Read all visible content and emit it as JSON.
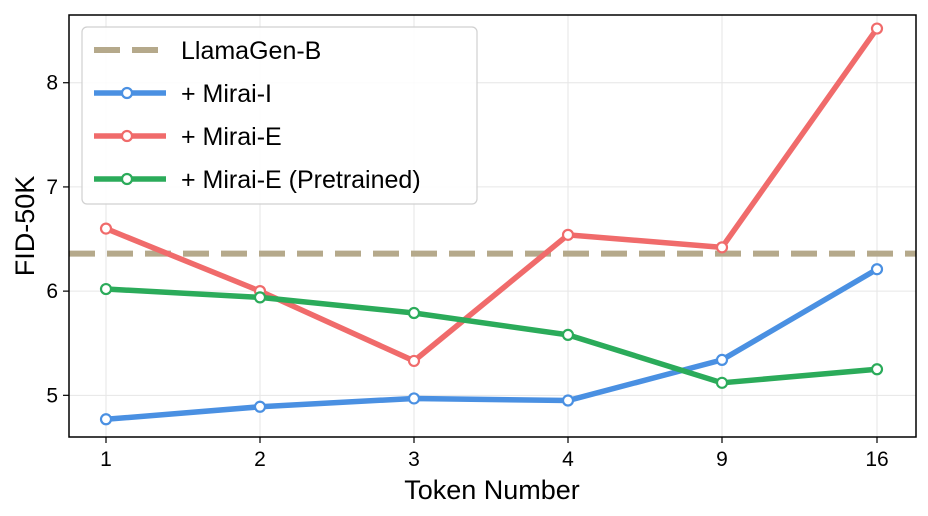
{
  "chart_data": {
    "type": "line",
    "title": "",
    "xlabel": "Token Number",
    "ylabel": "FID-50K",
    "categories": [
      "1",
      "2",
      "3",
      "4",
      "9",
      "16"
    ],
    "yticks": [
      "5",
      "6",
      "7",
      "8"
    ],
    "ylim": [
      4.6,
      8.65
    ],
    "grid": true,
    "legend_position": "top-left",
    "baseline": {
      "name": "LlamaGen-B",
      "value": 6.36,
      "color": "#b5a98b",
      "style": "dashed"
    },
    "series": [
      {
        "name": "+ Mirai-I",
        "color": "#4a90e2",
        "values": [
          4.77,
          4.89,
          4.97,
          4.95,
          5.34,
          6.21
        ]
      },
      {
        "name": "+ Mirai-E",
        "color": "#f06b6b",
        "values": [
          6.6,
          6.0,
          5.33,
          6.54,
          6.42,
          8.52
        ]
      },
      {
        "name": "+ Mirai-E (Pretrained)",
        "color": "#2bab5a",
        "values": [
          6.02,
          5.94,
          5.79,
          5.58,
          5.12,
          5.25
        ]
      }
    ]
  }
}
